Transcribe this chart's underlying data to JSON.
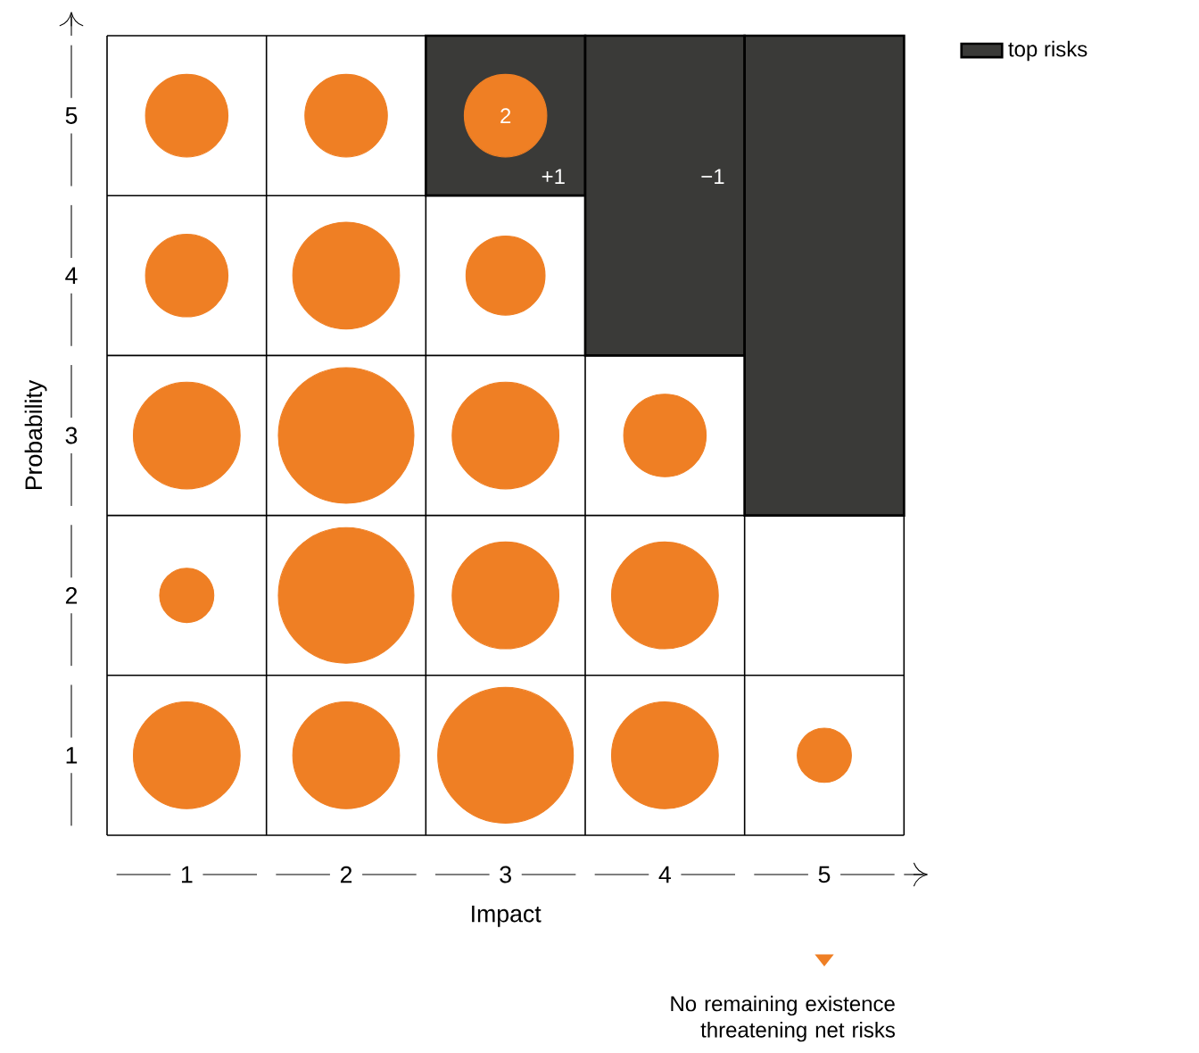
{
  "chart_data": {
    "type": "bubble",
    "xlabel": "Impact",
    "ylabel": "Probability",
    "xlim": [
      0.5,
      5.5
    ],
    "ylim": [
      0.5,
      5.5
    ],
    "xticks": [
      1,
      2,
      3,
      4,
      5
    ],
    "yticks": [
      1,
      2,
      3,
      4,
      5
    ],
    "grid": true,
    "legend": "top right",
    "series": [
      {
        "name": "top risks",
        "type": "bar",
        "color": "#3a3a38",
        "x": [
          3,
          4,
          5
        ],
        "base": [
          4.5,
          3.5,
          2.5
        ],
        "values": [
          1,
          2,
          3
        ]
      },
      {
        "color": "#ef7f24",
        "x": [
          1,
          2,
          3,
          1,
          2,
          3,
          1,
          2,
          3,
          4,
          1,
          2,
          3,
          4,
          1,
          2,
          3,
          4,
          5
        ],
        "values": [
          5,
          5,
          5,
          4,
          4,
          4,
          3,
          3,
          3,
          3,
          2,
          2,
          2,
          2,
          1,
          1,
          1,
          1,
          1
        ],
        "sizes": [
          0.37,
          0.37,
          0.37,
          0.37,
          0.62,
          0.34,
          0.62,
          1,
          0.62,
          0.37,
          0.16,
          1,
          0.62,
          0.62,
          0.62,
          0.62,
          1,
          0.62,
          0.16
        ]
      }
    ],
    "annotations": [
      {
        "text": "2",
        "x": 3,
        "y": 5
      },
      "+1",
      "−1",
      "No remaining existence threatening net risks"
    ]
  }
}
